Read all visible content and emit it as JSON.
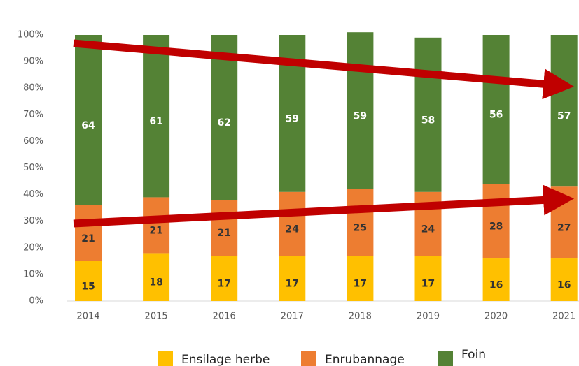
{
  "chart_data": {
    "type": "stacked_bar",
    "categories": [
      "2014",
      "2015",
      "2016",
      "2017",
      "2018",
      "2019",
      "2020",
      "2021"
    ],
    "series": [
      {
        "name": "Ensilage herbe",
        "color": "#ffc000",
        "values": [
          15,
          18,
          17,
          17,
          17,
          17,
          16,
          16
        ]
      },
      {
        "name": "Enrubannage",
        "color": "#ed7d31",
        "values": [
          21,
          21,
          21,
          24,
          25,
          24,
          28,
          27
        ]
      },
      {
        "name": "Foin",
        "color": "#548235",
        "values": [
          64,
          61,
          62,
          59,
          59,
          58,
          56,
          57
        ]
      }
    ],
    "ylim": [
      0,
      100
    ],
    "yticks": [
      {
        "value": 0,
        "label": "0%"
      },
      {
        "value": 10,
        "label": "10%"
      },
      {
        "value": 20,
        "label": "20%"
      },
      {
        "value": 30,
        "label": "30%"
      },
      {
        "value": 40,
        "label": "40%"
      },
      {
        "value": 50,
        "label": "50%"
      },
      {
        "value": 60,
        "label": "60%"
      },
      {
        "value": 70,
        "label": "70%"
      },
      {
        "value": 80,
        "label": "80%"
      },
      {
        "value": 90,
        "label": "90%"
      },
      {
        "value": 100,
        "label": "100%"
      }
    ],
    "grid": false
  }
}
